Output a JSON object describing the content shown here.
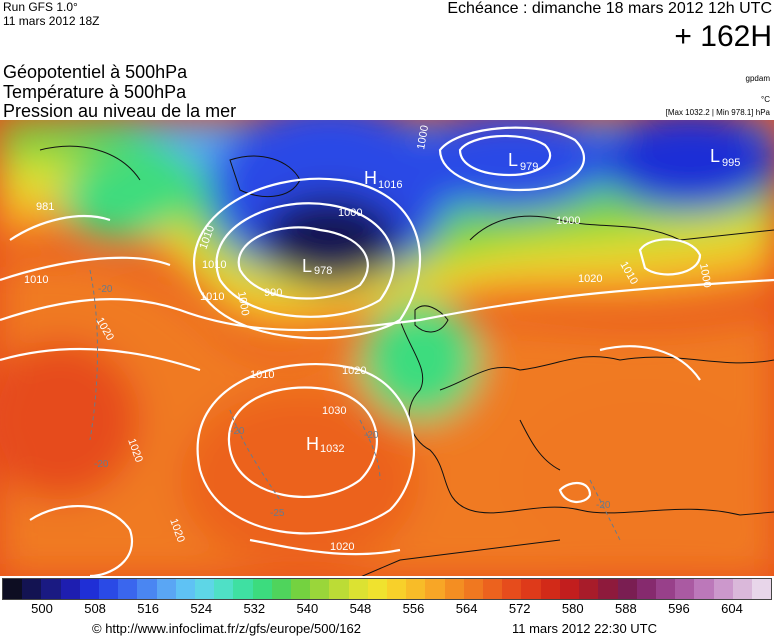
{
  "header": {
    "run_label": "Run GFS 1.0°",
    "run_date": "11 mars 2012 18Z",
    "valid_time": "Echéance : dimanche 18 mars 2012 12h UTC",
    "forecast_hour": "+ 162H"
  },
  "parameters": [
    "Géopotentiel à 500hPa",
    "Température à 500hPa",
    "Pression au niveau de la mer"
  ],
  "units": {
    "geopotential": "gpdam",
    "temperature": "°C",
    "pressure": "[Max 1032.2 | Min 978.1] hPa"
  },
  "pressure_centers": [
    {
      "type": "L",
      "value": "979"
    },
    {
      "type": "L",
      "value": "995"
    },
    {
      "type": "H",
      "value": "1016"
    },
    {
      "type": "L",
      "value": "978"
    },
    {
      "type": "H",
      "value": "1032"
    }
  ],
  "isobar_labels": [
    "981",
    "1000",
    "1000",
    "990",
    "1000",
    "1010",
    "1010",
    "1010",
    "1010",
    "1020",
    "1020",
    "1020",
    "1020",
    "1030",
    "1000",
    "1010",
    "1020",
    "1010",
    "1000",
    "1020"
  ],
  "isotherm_labels": [
    "-20",
    "-20",
    "-20",
    "-20",
    "-25",
    "-20"
  ],
  "scale": {
    "ticks": [
      "500",
      "508",
      "516",
      "524",
      "532",
      "540",
      "548",
      "556",
      "564",
      "572",
      "580",
      "588",
      "596",
      "604"
    ],
    "colors": [
      "#0d0d22",
      "#131352",
      "#1a1a82",
      "#1e1eb0",
      "#1f2fd6",
      "#2a4ae6",
      "#3a66ee",
      "#4a86f2",
      "#5aa6f4",
      "#5fc2f4",
      "#5ed6e6",
      "#4fe0c6",
      "#3fe0a2",
      "#3cdc7e",
      "#4fd45c",
      "#74d240",
      "#9ad63a",
      "#bcdc36",
      "#dce232",
      "#f0e22e",
      "#f8d02a",
      "#f8bc28",
      "#f8a626",
      "#f48e22",
      "#f07820",
      "#ec621e",
      "#e64c1c",
      "#de3a1a",
      "#d22a18",
      "#c21e1e",
      "#a81c2a",
      "#8e1a3c",
      "#7a1e52",
      "#862a6e",
      "#98408a",
      "#aa5aa2",
      "#bc78ba",
      "#cc98cc",
      "#dab8da",
      "#e8d6ea"
    ]
  },
  "footer": {
    "url": "© http://www.infoclimat.fr/z/gfs/europe/500/162",
    "timestamp": "11 mars 2012 22:30 UTC"
  }
}
